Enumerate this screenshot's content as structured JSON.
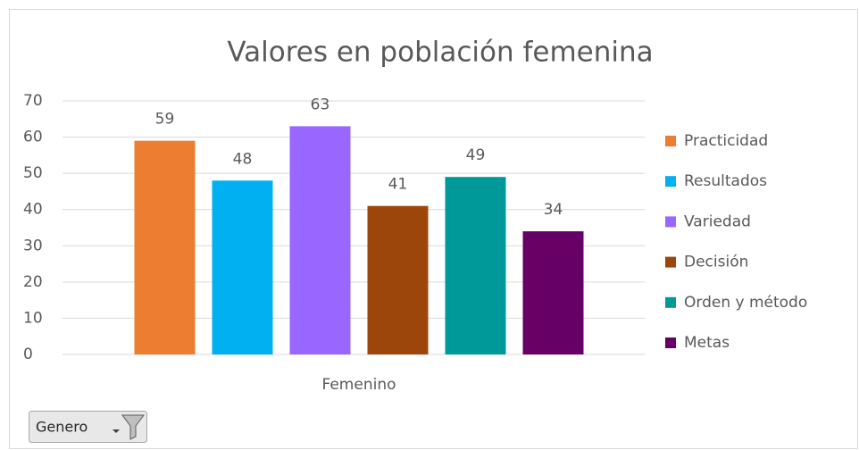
{
  "chart_data": {
    "type": "bar",
    "title": "Valores en población femenina",
    "categories": [
      "Femenino"
    ],
    "series": [
      {
        "name": "Practicidad",
        "color": "#ed7d31",
        "values": [
          59
        ]
      },
      {
        "name": "Resultados",
        "color": "#00b0f0",
        "values": [
          48
        ]
      },
      {
        "name": "Variedad",
        "color": "#9966ff",
        "values": [
          63
        ]
      },
      {
        "name": "Decisión",
        "color": "#9c460b",
        "values": [
          41
        ]
      },
      {
        "name": "Orden y método",
        "color": "#009999",
        "values": [
          49
        ]
      },
      {
        "name": "Metas",
        "color": "#660066",
        "values": [
          34
        ]
      }
    ],
    "ylim": [
      0,
      70
    ],
    "yticks": [
      0,
      10,
      20,
      30,
      40,
      50,
      60,
      70
    ],
    "grid": true,
    "legend": "right"
  },
  "filter_button": {
    "label": "Genero"
  }
}
